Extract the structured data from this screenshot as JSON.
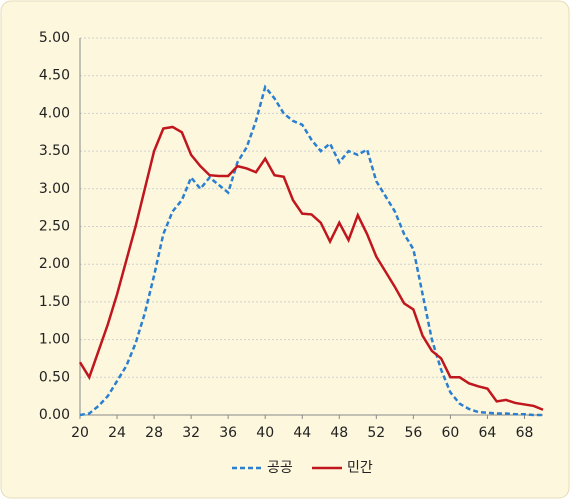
{
  "chart_data": {
    "type": "line",
    "x": [
      20,
      21,
      22,
      23,
      24,
      25,
      26,
      27,
      28,
      29,
      30,
      31,
      32,
      33,
      34,
      35,
      36,
      37,
      38,
      39,
      40,
      41,
      42,
      43,
      44,
      45,
      46,
      47,
      48,
      49,
      50,
      51,
      52,
      53,
      54,
      55,
      56,
      57,
      58,
      59,
      60,
      61,
      62,
      63,
      64,
      65,
      66,
      67,
      68,
      69,
      70
    ],
    "series": [
      {
        "name": "공공",
        "color": "#2b7fd0",
        "dash": true,
        "values": [
          0.0,
          0.02,
          0.12,
          0.25,
          0.45,
          0.65,
          0.95,
          1.35,
          1.85,
          2.4,
          2.7,
          2.85,
          3.15,
          3.0,
          3.15,
          3.05,
          2.95,
          3.35,
          3.55,
          3.9,
          4.35,
          4.2,
          4.0,
          3.9,
          3.85,
          3.65,
          3.5,
          3.6,
          3.35,
          3.5,
          3.45,
          3.52,
          3.1,
          2.9,
          2.7,
          2.4,
          2.2,
          1.6,
          1.0,
          0.6,
          0.3,
          0.15,
          0.08,
          0.04,
          0.03,
          0.02,
          0.02,
          0.01,
          0.01,
          0.0,
          0.0
        ]
      },
      {
        "name": "민간",
        "color": "#c0161d",
        "dash": false,
        "values": [
          0.7,
          0.5,
          0.85,
          1.2,
          1.6,
          2.05,
          2.5,
          3.0,
          3.5,
          3.8,
          3.82,
          3.75,
          3.45,
          3.3,
          3.18,
          3.17,
          3.17,
          3.3,
          3.27,
          3.22,
          3.4,
          3.18,
          3.16,
          2.85,
          2.67,
          2.66,
          2.55,
          2.3,
          2.55,
          2.32,
          2.65,
          2.4,
          2.1,
          1.9,
          1.7,
          1.48,
          1.4,
          1.05,
          0.85,
          0.75,
          0.5,
          0.5,
          0.42,
          0.38,
          0.35,
          0.18,
          0.2,
          0.16,
          0.14,
          0.12,
          0.07
        ]
      }
    ],
    "xlim": [
      20,
      70
    ],
    "xticks": [
      20,
      24,
      28,
      32,
      36,
      40,
      44,
      48,
      52,
      56,
      60,
      64,
      68
    ],
    "ylim": [
      0,
      5
    ],
    "yticks": [
      {
        "value": 0,
        "label": "0.00"
      },
      {
        "value": 0.5,
        "label": "0.50"
      },
      {
        "value": 1,
        "label": "1.00"
      },
      {
        "value": 1.5,
        "label": "1.50"
      },
      {
        "value": 2,
        "label": "2.00"
      },
      {
        "value": 2.5,
        "label": "2.50"
      },
      {
        "value": 3,
        "label": "3.00"
      },
      {
        "value": 3.5,
        "label": "3.50"
      },
      {
        "value": 4,
        "label": "4.00"
      },
      {
        "value": 4.5,
        "label": "4.50"
      },
      {
        "value": 5,
        "label": "5.00"
      }
    ],
    "grid": true,
    "legend": "bottom"
  }
}
